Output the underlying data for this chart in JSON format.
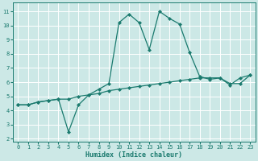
{
  "xlabel": "Humidex (Indice chaleur)",
  "ylabel": "",
  "background_color": "#cce8e6",
  "grid_color": "#ffffff",
  "line_color": "#1a7a6e",
  "xlim": [
    -0.5,
    23.5
  ],
  "ylim": [
    1.8,
    11.6
  ],
  "yticks": [
    2,
    3,
    4,
    5,
    6,
    7,
    8,
    9,
    10,
    11
  ],
  "xticks": [
    0,
    1,
    2,
    3,
    4,
    5,
    6,
    7,
    8,
    9,
    10,
    11,
    12,
    13,
    14,
    15,
    16,
    17,
    18,
    19,
    20,
    21,
    22,
    23
  ],
  "series1_x": [
    0,
    1,
    2,
    3,
    4,
    5,
    6,
    7,
    8,
    9,
    10,
    11,
    12,
    13,
    14,
    15,
    16,
    17,
    18,
    19,
    20,
    21,
    22,
    23
  ],
  "series1_y": [
    4.4,
    4.4,
    4.6,
    4.7,
    4.8,
    2.5,
    4.4,
    5.1,
    5.5,
    5.9,
    10.2,
    10.8,
    10.2,
    8.3,
    11.0,
    10.5,
    10.1,
    8.1,
    6.4,
    6.2,
    6.3,
    5.8,
    6.3,
    6.5
  ],
  "series2_x": [
    0,
    1,
    2,
    3,
    4,
    5,
    6,
    7,
    8,
    9,
    10,
    11,
    12,
    13,
    14,
    15,
    16,
    17,
    18,
    19,
    20,
    21,
    22,
    23
  ],
  "series2_y": [
    4.4,
    4.4,
    4.6,
    4.7,
    4.8,
    4.8,
    5.0,
    5.1,
    5.2,
    5.4,
    5.5,
    5.6,
    5.7,
    5.8,
    5.9,
    6.0,
    6.1,
    6.2,
    6.3,
    6.3,
    6.3,
    5.9,
    5.9,
    6.5
  ],
  "tick_fontsize": 5.0,
  "xlabel_fontsize": 6.0,
  "marker_size": 2.0,
  "line_width": 0.9
}
